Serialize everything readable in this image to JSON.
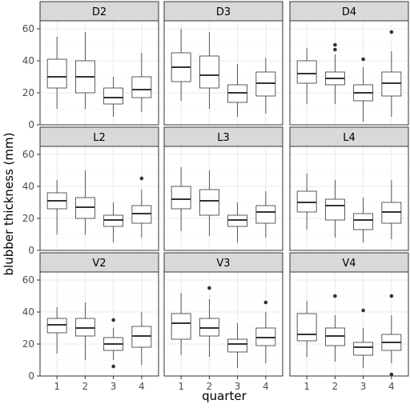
{
  "chart_data": {
    "type": "boxplot",
    "xlabel": "quarter",
    "ylabel": "blubber thickness (mm)",
    "x_categories": [
      "1",
      "2",
      "3",
      "4"
    ],
    "y_ticks": [
      0,
      20,
      40,
      60
    ],
    "ylim": [
      0,
      65
    ],
    "grid": true,
    "facet_layout": "3x3",
    "panels": [
      {
        "label": "D2",
        "boxes": [
          {
            "q": "1",
            "min": 10,
            "q1": 23,
            "median": 30,
            "q3": 41,
            "max": 55,
            "outliers": []
          },
          {
            "q": "2",
            "min": 10,
            "q1": 20,
            "median": 30,
            "q3": 40,
            "max": 58,
            "outliers": []
          },
          {
            "q": "3",
            "min": 5,
            "q1": 13,
            "median": 17,
            "q3": 23,
            "max": 30,
            "outliers": []
          },
          {
            "q": "4",
            "min": 8,
            "q1": 17,
            "median": 22,
            "q3": 30,
            "max": 45,
            "outliers": []
          }
        ]
      },
      {
        "label": "D3",
        "boxes": [
          {
            "q": "1",
            "min": 15,
            "q1": 27,
            "median": 36,
            "q3": 45,
            "max": 60,
            "outliers": []
          },
          {
            "q": "2",
            "min": 10,
            "q1": 23,
            "median": 31,
            "q3": 43,
            "max": 58,
            "outliers": []
          },
          {
            "q": "3",
            "min": 5,
            "q1": 14,
            "median": 20,
            "q3": 25,
            "max": 38,
            "outliers": []
          },
          {
            "q": "4",
            "min": 7,
            "q1": 18,
            "median": 26,
            "q3": 33,
            "max": 42,
            "outliers": []
          }
        ]
      },
      {
        "label": "D4",
        "boxes": [
          {
            "q": "1",
            "min": 13,
            "q1": 26,
            "median": 32,
            "q3": 40,
            "max": 48,
            "outliers": []
          },
          {
            "q": "2",
            "min": 13,
            "q1": 25,
            "median": 29,
            "q3": 33,
            "max": 44,
            "outliers": [
              47,
              50
            ]
          },
          {
            "q": "3",
            "min": 2,
            "q1": 15,
            "median": 20,
            "q3": 25,
            "max": 36,
            "outliers": [
              41
            ]
          },
          {
            "q": "4",
            "min": 5,
            "q1": 18,
            "median": 26,
            "q3": 33,
            "max": 46,
            "outliers": [
              58
            ]
          }
        ]
      },
      {
        "label": "L2",
        "boxes": [
          {
            "q": "1",
            "min": 10,
            "q1": 26,
            "median": 31,
            "q3": 36,
            "max": 44,
            "outliers": []
          },
          {
            "q": "2",
            "min": 10,
            "q1": 20,
            "median": 27,
            "q3": 33,
            "max": 50,
            "outliers": []
          },
          {
            "q": "3",
            "min": 5,
            "q1": 15,
            "median": 19,
            "q3": 22,
            "max": 30,
            "outliers": []
          },
          {
            "q": "4",
            "min": 8,
            "q1": 17,
            "median": 23,
            "q3": 28,
            "max": 38,
            "outliers": [
              45
            ]
          }
        ]
      },
      {
        "label": "L3",
        "boxes": [
          {
            "q": "1",
            "min": 12,
            "q1": 26,
            "median": 32,
            "q3": 40,
            "max": 52,
            "outliers": []
          },
          {
            "q": "2",
            "min": 9,
            "q1": 22,
            "median": 31,
            "q3": 38,
            "max": 50,
            "outliers": []
          },
          {
            "q": "3",
            "min": 5,
            "q1": 15,
            "median": 19,
            "q3": 22,
            "max": 30,
            "outliers": []
          },
          {
            "q": "4",
            "min": 8,
            "q1": 17,
            "median": 24,
            "q3": 28,
            "max": 37,
            "outliers": []
          }
        ]
      },
      {
        "label": "L4",
        "boxes": [
          {
            "q": "1",
            "min": 13,
            "q1": 24,
            "median": 30,
            "q3": 37,
            "max": 48,
            "outliers": []
          },
          {
            "q": "2",
            "min": 8,
            "q1": 19,
            "median": 28,
            "q3": 32,
            "max": 44,
            "outliers": []
          },
          {
            "q": "3",
            "min": 5,
            "q1": 13,
            "median": 19,
            "q3": 23,
            "max": 33,
            "outliers": []
          },
          {
            "q": "4",
            "min": 7,
            "q1": 17,
            "median": 24,
            "q3": 30,
            "max": 44,
            "outliers": []
          }
        ]
      },
      {
        "label": "V2",
        "boxes": [
          {
            "q": "1",
            "min": 14,
            "q1": 27,
            "median": 32,
            "q3": 36,
            "max": 43,
            "outliers": []
          },
          {
            "q": "2",
            "min": 10,
            "q1": 25,
            "median": 30,
            "q3": 36,
            "max": 46,
            "outliers": []
          },
          {
            "q": "3",
            "min": 10,
            "q1": 16,
            "median": 20,
            "q3": 24,
            "max": 30,
            "outliers": [
              6,
              35
            ]
          },
          {
            "q": "4",
            "min": 7,
            "q1": 18,
            "median": 25,
            "q3": 31,
            "max": 40,
            "outliers": []
          }
        ]
      },
      {
        "label": "V3",
        "boxes": [
          {
            "q": "1",
            "min": 13,
            "q1": 23,
            "median": 33,
            "q3": 39,
            "max": 52,
            "outliers": []
          },
          {
            "q": "2",
            "min": 12,
            "q1": 25,
            "median": 30,
            "q3": 36,
            "max": 48,
            "outliers": [
              55
            ]
          },
          {
            "q": "3",
            "min": 5,
            "q1": 15,
            "median": 20,
            "q3": 23,
            "max": 33,
            "outliers": []
          },
          {
            "q": "4",
            "min": 8,
            "q1": 19,
            "median": 24,
            "q3": 30,
            "max": 40,
            "outliers": [
              46
            ]
          }
        ]
      },
      {
        "label": "V4",
        "boxes": [
          {
            "q": "1",
            "min": 12,
            "q1": 22,
            "median": 26,
            "q3": 39,
            "max": 47,
            "outliers": []
          },
          {
            "q": "2",
            "min": 9,
            "q1": 19,
            "median": 25,
            "q3": 30,
            "max": 38,
            "outliers": [
              50
            ]
          },
          {
            "q": "3",
            "min": 5,
            "q1": 13,
            "median": 18,
            "q3": 21,
            "max": 30,
            "outliers": [
              41
            ]
          },
          {
            "q": "4",
            "min": 8,
            "q1": 16,
            "median": 21,
            "q3": 26,
            "max": 38,
            "outliers": [
              1,
              50
            ]
          }
        ]
      }
    ]
  },
  "colors": {
    "panel_background": "#ffffff",
    "strip_background": "#d9d9d9",
    "border": "#333333",
    "grid": "#ebebeb",
    "box_stroke": "#333333",
    "outlier": "#333333",
    "axis_text": "#4d4d4d",
    "title_text": "#000000"
  }
}
